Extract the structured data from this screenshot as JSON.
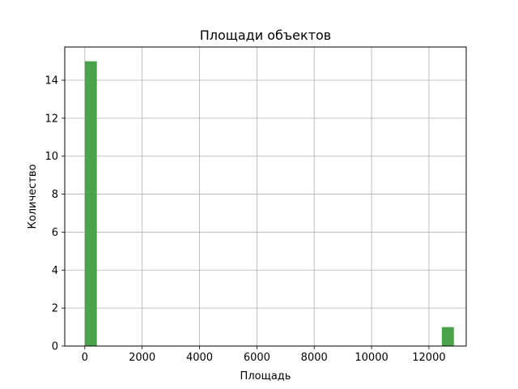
{
  "chart_data": {
    "type": "bar",
    "title": "Площади объектов",
    "xlabel": "Площадь",
    "ylabel": "Количество",
    "xlim": [
      -700,
      13300
    ],
    "ylim": [
      0,
      15.75
    ],
    "xticks": [
      0,
      2000,
      4000,
      6000,
      8000,
      10000,
      12000
    ],
    "yticks": [
      0,
      2,
      4,
      6,
      8,
      10,
      12,
      14
    ],
    "grid": true,
    "bar_color": "#4aa24a",
    "bins": [
      {
        "x0": 0,
        "x1": 420,
        "count": 15
      },
      {
        "x0": 12450,
        "x1": 12870,
        "count": 1
      }
    ]
  }
}
